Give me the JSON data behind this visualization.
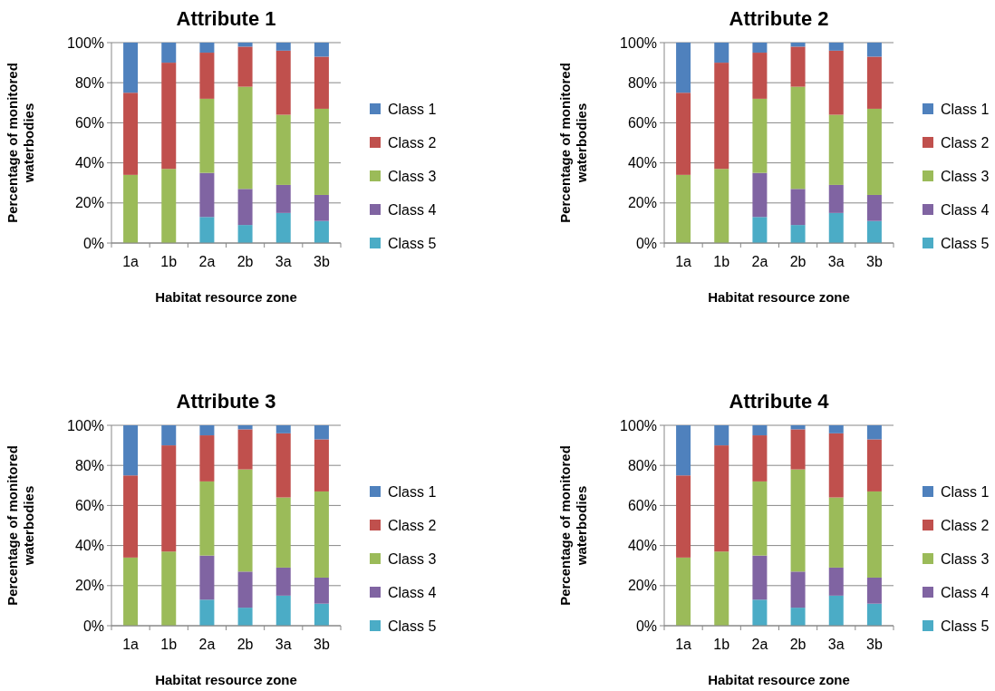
{
  "chart_data": [
    {
      "type": "bar",
      "title": "Attribute 1",
      "xlabel": "Habitat resource zone",
      "ylabel": "Percentage of monitored waterbodies",
      "categories": [
        "1a",
        "1b",
        "2a",
        "2b",
        "3a",
        "3b"
      ],
      "stacked": true,
      "ylim": [
        0,
        100
      ],
      "yticks": [
        {
          "value": 0,
          "label": "0%"
        },
        {
          "value": 20,
          "label": "20%"
        },
        {
          "value": 40,
          "label": "40%"
        },
        {
          "value": 60,
          "label": "60%"
        },
        {
          "value": 80,
          "label": "80%"
        },
        {
          "value": 100,
          "label": "100%"
        }
      ],
      "grid": "y",
      "legend": "right",
      "series": [
        {
          "name": "Class 5",
          "color": "#4bacc6",
          "values": [
            0,
            0,
            13,
            9,
            15,
            11
          ]
        },
        {
          "name": "Class 4",
          "color": "#8064a2",
          "values": [
            0,
            0,
            22,
            18,
            14,
            13
          ]
        },
        {
          "name": "Class 3",
          "color": "#9bbb59",
          "values": [
            34,
            37,
            37,
            51,
            35,
            43
          ]
        },
        {
          "name": "Class 2",
          "color": "#c0504d",
          "values": [
            41,
            53,
            23,
            20,
            32,
            26
          ]
        },
        {
          "name": "Class 1",
          "color": "#4f81bd",
          "values": [
            25,
            10,
            5,
            2,
            4,
            7
          ]
        }
      ]
    },
    {
      "type": "bar",
      "title": "Attribute 2",
      "xlabel": "Habitat resource zone",
      "ylabel": "Percentage of monitored waterbodies",
      "categories": [
        "1a",
        "1b",
        "2a",
        "2b",
        "3a",
        "3b"
      ],
      "stacked": true,
      "ylim": [
        0,
        100
      ],
      "yticks": [
        {
          "value": 0,
          "label": "0%"
        },
        {
          "value": 20,
          "label": "20%"
        },
        {
          "value": 40,
          "label": "40%"
        },
        {
          "value": 60,
          "label": "60%"
        },
        {
          "value": 80,
          "label": "80%"
        },
        {
          "value": 100,
          "label": "100%"
        }
      ],
      "grid": "y",
      "legend": "right",
      "series": [
        {
          "name": "Class 5",
          "color": "#4bacc6",
          "values": [
            0,
            0,
            13,
            9,
            15,
            11
          ]
        },
        {
          "name": "Class 4",
          "color": "#8064a2",
          "values": [
            0,
            0,
            22,
            18,
            14,
            13
          ]
        },
        {
          "name": "Class 3",
          "color": "#9bbb59",
          "values": [
            34,
            37,
            37,
            51,
            35,
            43
          ]
        },
        {
          "name": "Class 2",
          "color": "#c0504d",
          "values": [
            41,
            53,
            23,
            20,
            32,
            26
          ]
        },
        {
          "name": "Class 1",
          "color": "#4f81bd",
          "values": [
            25,
            10,
            5,
            2,
            4,
            7
          ]
        }
      ]
    },
    {
      "type": "bar",
      "title": "Attribute 3",
      "xlabel": "Habitat resource zone",
      "ylabel": "Percentage of monitored waterbodies",
      "categories": [
        "1a",
        "1b",
        "2a",
        "2b",
        "3a",
        "3b"
      ],
      "stacked": true,
      "ylim": [
        0,
        100
      ],
      "yticks": [
        {
          "value": 0,
          "label": "0%"
        },
        {
          "value": 20,
          "label": "20%"
        },
        {
          "value": 40,
          "label": "40%"
        },
        {
          "value": 60,
          "label": "60%"
        },
        {
          "value": 80,
          "label": "80%"
        },
        {
          "value": 100,
          "label": "100%"
        }
      ],
      "grid": "y",
      "legend": "right",
      "series": [
        {
          "name": "Class 5",
          "color": "#4bacc6",
          "values": [
            0,
            0,
            13,
            9,
            15,
            11
          ]
        },
        {
          "name": "Class 4",
          "color": "#8064a2",
          "values": [
            0,
            0,
            22,
            18,
            14,
            13
          ]
        },
        {
          "name": "Class 3",
          "color": "#9bbb59",
          "values": [
            34,
            37,
            37,
            51,
            35,
            43
          ]
        },
        {
          "name": "Class 2",
          "color": "#c0504d",
          "values": [
            41,
            53,
            23,
            20,
            32,
            26
          ]
        },
        {
          "name": "Class 1",
          "color": "#4f81bd",
          "values": [
            25,
            10,
            5,
            2,
            4,
            7
          ]
        }
      ]
    },
    {
      "type": "bar",
      "title": "Attribute 4",
      "xlabel": "Habitat resource zone",
      "ylabel": "Percentage of monitored waterbodies",
      "categories": [
        "1a",
        "1b",
        "2a",
        "2b",
        "3a",
        "3b"
      ],
      "stacked": true,
      "ylim": [
        0,
        100
      ],
      "yticks": [
        {
          "value": 0,
          "label": "0%"
        },
        {
          "value": 20,
          "label": "20%"
        },
        {
          "value": 40,
          "label": "40%"
        },
        {
          "value": 60,
          "label": "60%"
        },
        {
          "value": 80,
          "label": "80%"
        },
        {
          "value": 100,
          "label": "100%"
        }
      ],
      "grid": "y",
      "legend": "right",
      "series": [
        {
          "name": "Class 5",
          "color": "#4bacc6",
          "values": [
            0,
            0,
            13,
            9,
            15,
            11
          ]
        },
        {
          "name": "Class 4",
          "color": "#8064a2",
          "values": [
            0,
            0,
            22,
            18,
            14,
            13
          ]
        },
        {
          "name": "Class 3",
          "color": "#9bbb59",
          "values": [
            34,
            37,
            37,
            51,
            35,
            43
          ]
        },
        {
          "name": "Class 2",
          "color": "#c0504d",
          "values": [
            41,
            53,
            23,
            20,
            32,
            26
          ]
        },
        {
          "name": "Class 1",
          "color": "#4f81bd",
          "values": [
            25,
            10,
            5,
            2,
            4,
            7
          ]
        }
      ]
    }
  ]
}
